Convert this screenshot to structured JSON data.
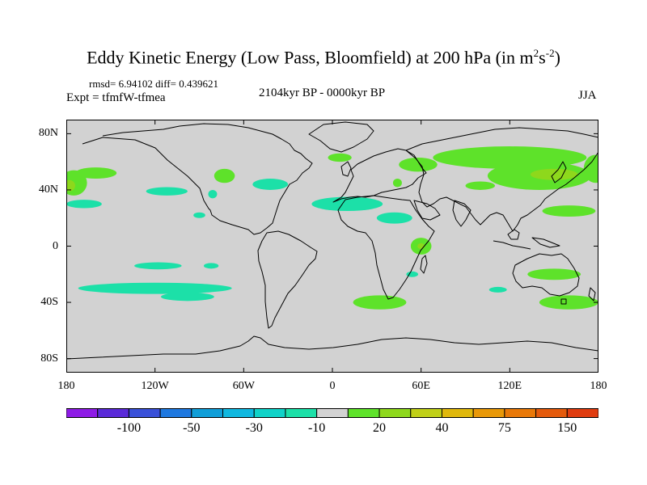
{
  "title": {
    "main": "Eddy Kinetic Energy (Low Pass, Bloomfield) at 200 hPa (in m",
    "sup1": "2",
    "mid": "s",
    "sup2": "-2",
    "end": ")"
  },
  "subtitle": {
    "stats": "rmsd= 6.94102 diff= 0.439621",
    "experiment": "Expt = tfmfW-tfmea",
    "period": "2104kyr BP - 0000kyr BP",
    "season": "JJA"
  },
  "map_axes": {
    "lon_ticks": [
      {
        "label": "180",
        "value": -180
      },
      {
        "label": "120W",
        "value": -120
      },
      {
        "label": "60W",
        "value": -60
      },
      {
        "label": "0",
        "value": 0
      },
      {
        "label": "60E",
        "value": 60
      },
      {
        "label": "120E",
        "value": 120
      },
      {
        "label": "180",
        "value": 180
      }
    ],
    "lat_ticks": [
      {
        "label": "80N",
        "value": 80
      },
      {
        "label": "40N",
        "value": 40
      },
      {
        "label": "0",
        "value": 0
      },
      {
        "label": "40S",
        "value": -40
      },
      {
        "label": "80S",
        "value": -80
      }
    ],
    "lon_range": [
      -180,
      180
    ],
    "lat_range": [
      -90,
      90
    ]
  },
  "colorbar": {
    "colors": [
      "#8e1be6",
      "#5a2ad8",
      "#3950d8",
      "#1e78e0",
      "#109ed8",
      "#10b8e0",
      "#10d2c8",
      "#1ce0a8",
      "#d2d2d2",
      "#5ee22a",
      "#8ed81c",
      "#c0d018",
      "#e0b80c",
      "#e89808",
      "#e87808",
      "#e45a0c",
      "#e03c10"
    ],
    "labels": [
      {
        "text": "-100",
        "boundary": 2
      },
      {
        "text": "-50",
        "boundary": 4
      },
      {
        "text": "-30",
        "boundary": 6
      },
      {
        "text": "-10",
        "boundary": 8
      },
      {
        "text": "20",
        "boundary": 10
      },
      {
        "text": "40",
        "boundary": 12
      },
      {
        "text": "75",
        "boundary": 14
      },
      {
        "text": "150",
        "boundary": 16
      }
    ]
  },
  "field_patches": [
    {
      "lon": -175,
      "lat": 45,
      "rlon": 9,
      "rlat": 9,
      "color": "#5ee22a"
    },
    {
      "lon": -178,
      "lat": 43,
      "rlon": 4,
      "rlat": 4,
      "color": "#8ed81c"
    },
    {
      "lon": -160,
      "lat": 52,
      "rlon": 14,
      "rlat": 4,
      "color": "#5ee22a"
    },
    {
      "lon": -168,
      "lat": 30,
      "rlon": 12,
      "rlat": 3,
      "color": "#1ce0a8"
    },
    {
      "lon": -112,
      "lat": 39,
      "rlon": 14,
      "rlat": 3,
      "color": "#1ce0a8"
    },
    {
      "lon": -118,
      "lat": -14,
      "rlon": 16,
      "rlat": 2.5,
      "color": "#1ce0a8"
    },
    {
      "lon": -82,
      "lat": -14,
      "rlon": 5,
      "rlat": 2,
      "color": "#1ce0a8"
    },
    {
      "lon": -120,
      "lat": -30,
      "rlon": 52,
      "rlat": 4,
      "color": "#1ce0a8"
    },
    {
      "lon": -98,
      "lat": -36,
      "rlon": 18,
      "rlat": 3,
      "color": "#1ce0a8"
    },
    {
      "lon": -73,
      "lat": 50,
      "rlon": 7,
      "rlat": 5,
      "color": "#5ee22a"
    },
    {
      "lon": -81,
      "lat": 37,
      "rlon": 3,
      "rlat": 3,
      "color": "#1ce0a8"
    },
    {
      "lon": -90,
      "lat": 22,
      "rlon": 4,
      "rlat": 2,
      "color": "#1ce0a8"
    },
    {
      "lon": -42,
      "lat": 44,
      "rlon": 12,
      "rlat": 4,
      "color": "#1ce0a8"
    },
    {
      "lon": 5,
      "lat": 63,
      "rlon": 8,
      "rlat": 3,
      "color": "#5ee22a"
    },
    {
      "lon": 10,
      "lat": 30,
      "rlon": 24,
      "rlat": 5,
      "color": "#1ce0a8"
    },
    {
      "lon": 42,
      "lat": 20,
      "rlon": 12,
      "rlat": 4,
      "color": "#1ce0a8"
    },
    {
      "lon": 44,
      "lat": 45,
      "rlon": 3,
      "rlat": 3,
      "color": "#5ee22a"
    },
    {
      "lon": 58,
      "lat": 58,
      "rlon": 13,
      "rlat": 5,
      "color": "#5ee22a"
    },
    {
      "lon": 60,
      "lat": 0,
      "rlon": 7,
      "rlat": 6,
      "color": "#5ee22a"
    },
    {
      "lon": 60,
      "lat": 0,
      "rlon": 2.5,
      "rlat": 2,
      "color": "#8ed81c"
    },
    {
      "lon": 54,
      "lat": -20,
      "rlon": 4,
      "rlat": 2,
      "color": "#1ce0a8"
    },
    {
      "lon": 32,
      "lat": -40,
      "rlon": 18,
      "rlat": 5,
      "color": "#5ee22a"
    },
    {
      "lon": 120,
      "lat": 63,
      "rlon": 52,
      "rlat": 8,
      "color": "#5ee22a"
    },
    {
      "lon": 140,
      "lat": 50,
      "rlon": 35,
      "rlat": 10,
      "color": "#5ee22a"
    },
    {
      "lon": 150,
      "lat": 51,
      "rlon": 16,
      "rlat": 4,
      "color": "#8ed81c"
    },
    {
      "lon": 178,
      "lat": 55,
      "rlon": 8,
      "rlat": 10,
      "color": "#5ee22a"
    },
    {
      "lon": 100,
      "lat": 43,
      "rlon": 10,
      "rlat": 3,
      "color": "#5ee22a"
    },
    {
      "lon": 160,
      "lat": 25,
      "rlon": 18,
      "rlat": 4,
      "color": "#5ee22a"
    },
    {
      "lon": 150,
      "lat": -20,
      "rlon": 18,
      "rlat": 4,
      "color": "#5ee22a"
    },
    {
      "lon": 160,
      "lat": -40,
      "rlon": 20,
      "rlat": 5,
      "color": "#5ee22a"
    },
    {
      "lon": 112,
      "lat": -31,
      "rlon": 6,
      "rlat": 2,
      "color": "#1ce0a8"
    }
  ]
}
